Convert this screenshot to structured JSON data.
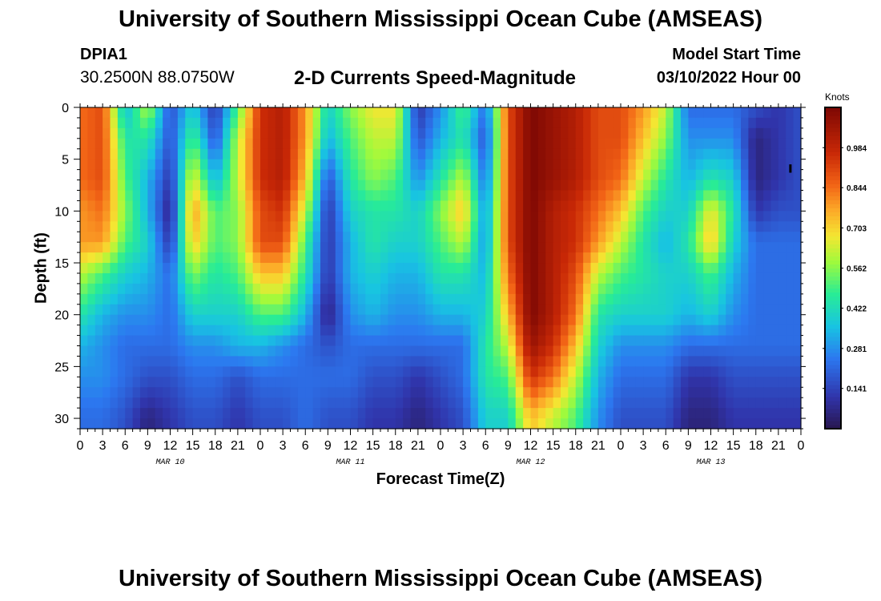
{
  "title": "University of Southern Mississippi Ocean Cube (AMSEAS)",
  "station": {
    "id": "DPIA1",
    "coords": "30.2500N  88.0750W"
  },
  "subtitle": "2-D Currents Speed-Magnitude",
  "model_start": {
    "label": "Model Start Time",
    "value": "03/10/2022 Hour 00"
  },
  "footer_title": "University of Southern Mississippi Ocean Cube (AMSEAS)",
  "chart_data": {
    "type": "heatmap",
    "title": "2-D Currents Speed-Magnitude",
    "xlabel": "Forecast Time(Z)",
    "ylabel": "Depth (ft)",
    "x_hours": [
      0,
      96
    ],
    "x_tick_labels": [
      "0",
      "3",
      "6",
      "9",
      "12",
      "15",
      "18",
      "21",
      "0",
      "3",
      "6",
      "9",
      "12",
      "15",
      "18",
      "21",
      "0",
      "3",
      "6",
      "9",
      "12",
      "15",
      "18",
      "21",
      "0",
      "3",
      "6",
      "9",
      "12",
      "15",
      "18",
      "21",
      "0"
    ],
    "date_labels": [
      {
        "label": "MAR 10",
        "hour": 12
      },
      {
        "label": "MAR 11",
        "hour": 36
      },
      {
        "label": "MAR 12",
        "hour": 60
      },
      {
        "label": "MAR 13",
        "hour": 84
      }
    ],
    "y_ticks": [
      0,
      5,
      10,
      15,
      20,
      25,
      30
    ],
    "y_range": [
      0,
      31
    ],
    "colorbar": {
      "label": "Knots",
      "range": [
        0.0,
        1.125
      ],
      "ticks": [
        "0.141",
        "0.281",
        "0.422",
        "0.562",
        "0.703",
        "0.844",
        "0.984"
      ]
    },
    "depth_levels_ft": [
      0,
      3,
      7,
      10,
      13,
      16,
      20,
      23,
      26,
      30
    ],
    "speed_grid_keyframes": {
      "hours": [
        0,
        3,
        6,
        9,
        12,
        15,
        18,
        21,
        24,
        27,
        30,
        33,
        36,
        39,
        42,
        45,
        48,
        51,
        54,
        57,
        60,
        63,
        66,
        69,
        72,
        75,
        78,
        81,
        84,
        87,
        90,
        93,
        96
      ],
      "rows": [
        [
          0.75,
          0.8,
          0.3,
          0.55,
          0.15,
          0.35,
          0.1,
          0.45,
          0.85,
          0.9,
          0.7,
          0.35,
          0.5,
          0.6,
          0.6,
          0.1,
          0.25,
          0.45,
          0.2,
          0.8,
          1.0,
          0.95,
          0.9,
          0.8,
          0.8,
          0.7,
          0.55,
          0.2,
          0.2,
          0.2,
          0.15,
          0.1,
          0.15
        ],
        [
          0.75,
          0.8,
          0.4,
          0.4,
          0.15,
          0.45,
          0.15,
          0.55,
          0.85,
          0.9,
          0.7,
          0.3,
          0.45,
          0.55,
          0.55,
          0.15,
          0.3,
          0.4,
          0.15,
          0.8,
          1.0,
          0.95,
          0.9,
          0.8,
          0.8,
          0.65,
          0.5,
          0.25,
          0.25,
          0.25,
          0.05,
          0.1,
          0.15
        ],
        [
          0.75,
          0.8,
          0.45,
          0.3,
          0.1,
          0.6,
          0.3,
          0.55,
          0.85,
          0.9,
          0.65,
          0.15,
          0.4,
          0.5,
          0.45,
          0.25,
          0.4,
          0.55,
          0.2,
          0.8,
          1.0,
          0.95,
          0.9,
          0.8,
          0.75,
          0.55,
          0.4,
          0.3,
          0.4,
          0.35,
          0.05,
          0.1,
          0.15
        ],
        [
          0.7,
          0.75,
          0.5,
          0.3,
          0.05,
          0.7,
          0.45,
          0.5,
          0.8,
          0.85,
          0.55,
          0.1,
          0.35,
          0.4,
          0.4,
          0.35,
          0.5,
          0.65,
          0.25,
          0.8,
          1.0,
          0.9,
          0.85,
          0.75,
          0.65,
          0.45,
          0.35,
          0.35,
          0.6,
          0.4,
          0.1,
          0.15,
          0.15
        ],
        [
          0.7,
          0.7,
          0.45,
          0.35,
          0.1,
          0.65,
          0.45,
          0.5,
          0.8,
          0.8,
          0.45,
          0.1,
          0.3,
          0.4,
          0.35,
          0.35,
          0.45,
          0.55,
          0.25,
          0.8,
          1.0,
          0.9,
          0.85,
          0.7,
          0.55,
          0.4,
          0.3,
          0.4,
          0.65,
          0.35,
          0.2,
          0.2,
          0.2
        ],
        [
          0.55,
          0.45,
          0.35,
          0.3,
          0.2,
          0.5,
          0.4,
          0.45,
          0.65,
          0.65,
          0.4,
          0.1,
          0.3,
          0.35,
          0.3,
          0.3,
          0.4,
          0.4,
          0.3,
          0.75,
          1.0,
          0.9,
          0.8,
          0.55,
          0.45,
          0.4,
          0.35,
          0.35,
          0.45,
          0.3,
          0.2,
          0.2,
          0.2
        ],
        [
          0.4,
          0.3,
          0.25,
          0.25,
          0.2,
          0.35,
          0.35,
          0.35,
          0.45,
          0.45,
          0.3,
          0.05,
          0.25,
          0.3,
          0.25,
          0.25,
          0.3,
          0.3,
          0.35,
          0.65,
          1.0,
          0.9,
          0.75,
          0.4,
          0.35,
          0.35,
          0.35,
          0.3,
          0.35,
          0.25,
          0.2,
          0.2,
          0.2
        ],
        [
          0.3,
          0.25,
          0.2,
          0.2,
          0.2,
          0.25,
          0.25,
          0.3,
          0.3,
          0.25,
          0.2,
          0.15,
          0.2,
          0.2,
          0.2,
          0.2,
          0.2,
          0.2,
          0.4,
          0.55,
          0.95,
          0.85,
          0.65,
          0.35,
          0.25,
          0.25,
          0.25,
          0.2,
          0.2,
          0.2,
          0.2,
          0.2,
          0.2
        ],
        [
          0.25,
          0.25,
          0.2,
          0.15,
          0.15,
          0.2,
          0.2,
          0.15,
          0.2,
          0.2,
          0.2,
          0.2,
          0.2,
          0.15,
          0.15,
          0.1,
          0.15,
          0.2,
          0.4,
          0.45,
          0.85,
          0.75,
          0.55,
          0.3,
          0.2,
          0.2,
          0.2,
          0.1,
          0.1,
          0.15,
          0.15,
          0.15,
          0.15
        ],
        [
          0.2,
          0.2,
          0.15,
          0.05,
          0.1,
          0.15,
          0.15,
          0.1,
          0.15,
          0.15,
          0.2,
          0.15,
          0.15,
          0.1,
          0.1,
          0.05,
          0.1,
          0.15,
          0.35,
          0.35,
          0.65,
          0.55,
          0.45,
          0.25,
          0.15,
          0.15,
          0.15,
          0.05,
          0.05,
          0.1,
          0.1,
          0.1,
          0.1
        ]
      ]
    },
    "annotations": [
      {
        "type": "marker",
        "hour": 94.6,
        "depth_from": 5.5,
        "depth_to": 6.3
      }
    ]
  }
}
